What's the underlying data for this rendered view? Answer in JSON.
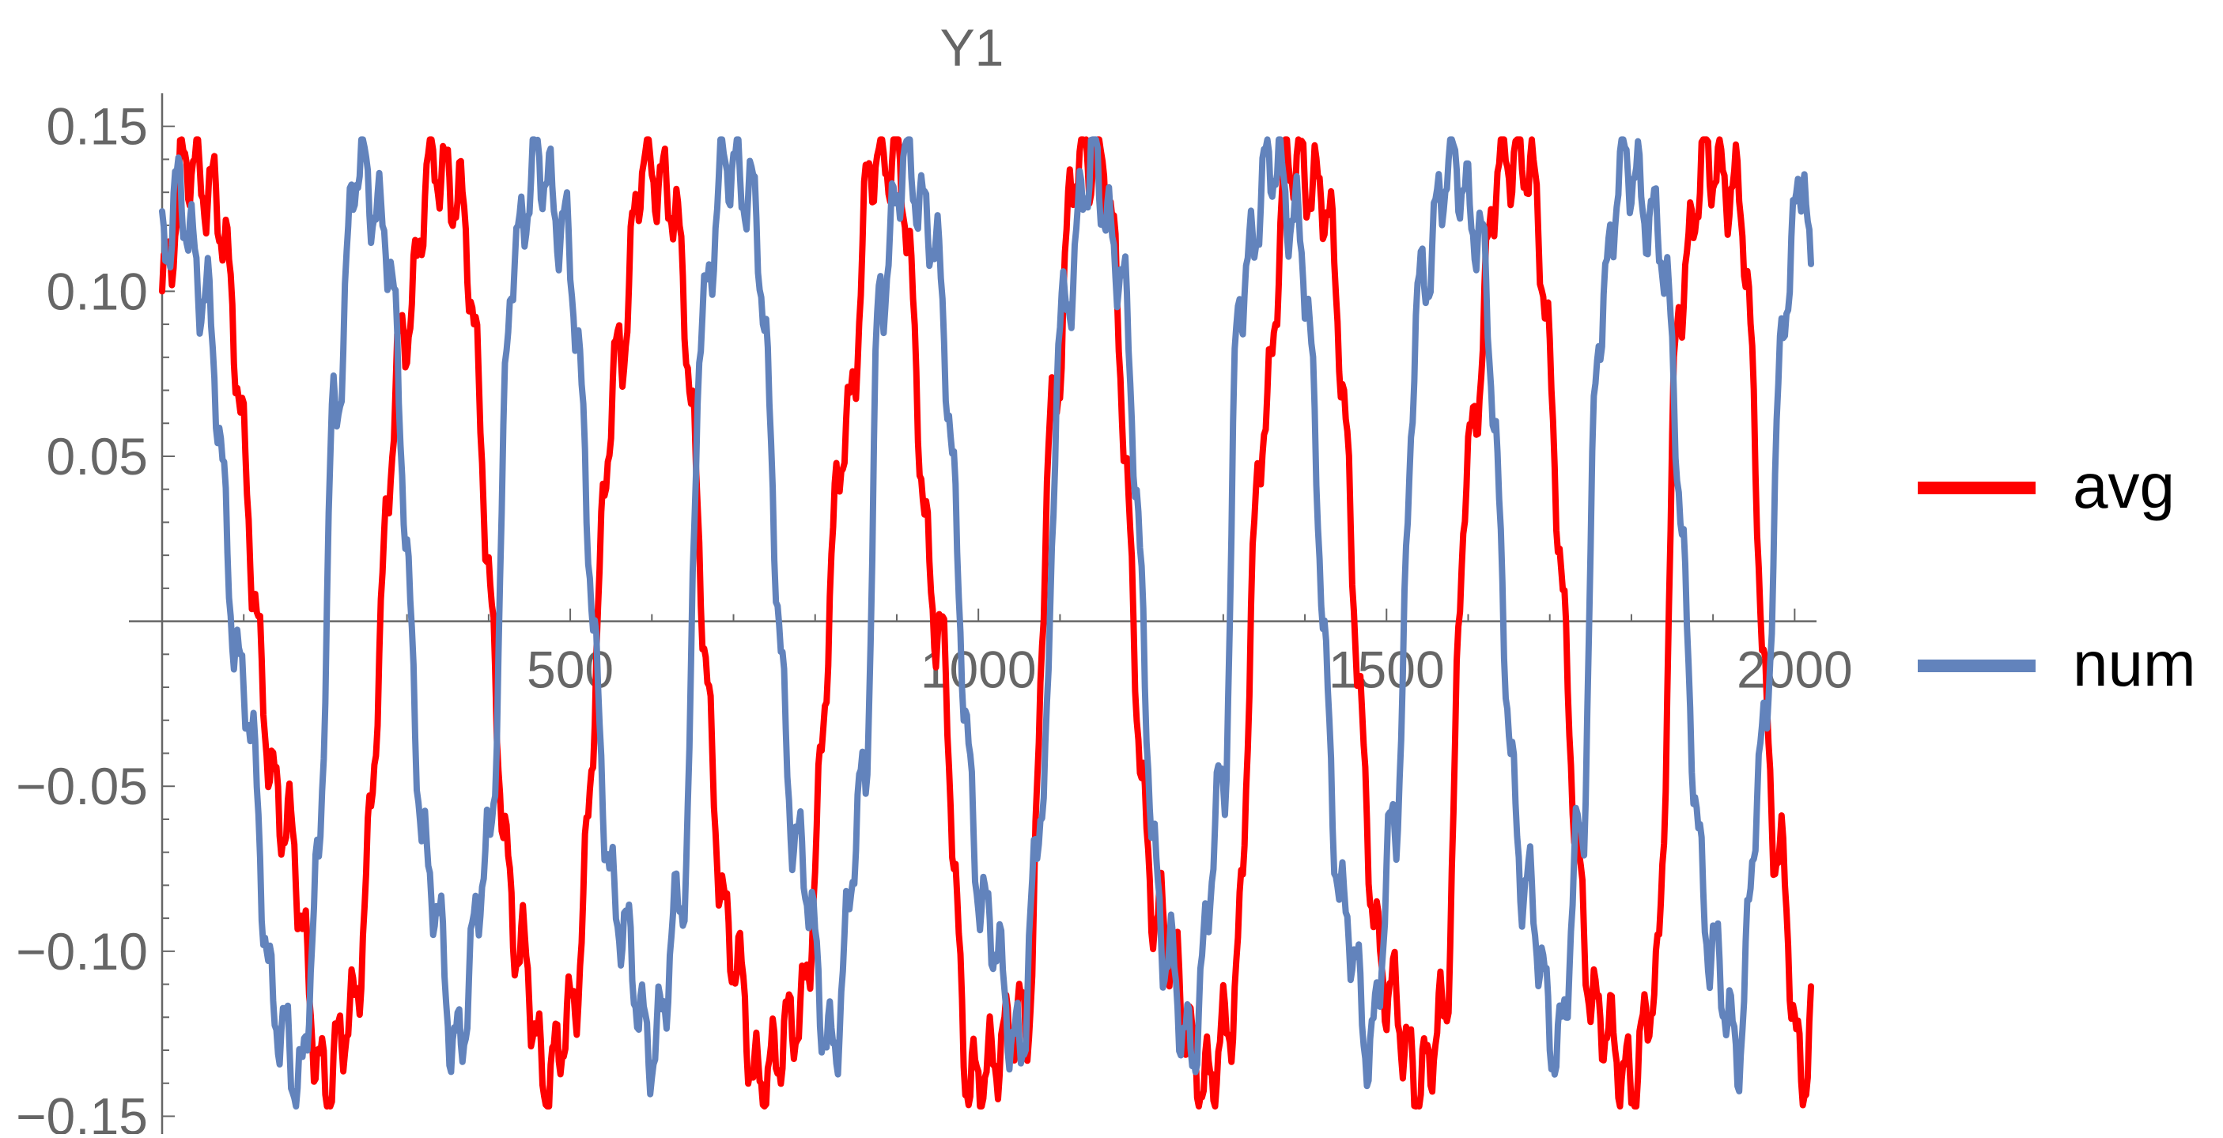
{
  "chart_data": {
    "type": "line",
    "title": "Y1",
    "xlabel": "",
    "ylabel": "",
    "xlim": [
      0,
      2020
    ],
    "ylim": [
      -0.153,
      0.16
    ],
    "x_ticks": [
      500,
      1000,
      1500,
      2000
    ],
    "x_tick_labels": [
      "500",
      "1000",
      "1500",
      "2000"
    ],
    "y_ticks": [
      0.15,
      0.1,
      0.05,
      -0.05,
      -0.1,
      -0.15
    ],
    "y_tick_labels": [
      "0.15",
      "0.10",
      "0.05",
      "−0.05",
      "−0.10",
      "−0.15"
    ],
    "grid": false,
    "legend_position": "right",
    "series": [
      {
        "name": "avg",
        "color": "#ff0000",
        "anchors": [
          [
            0,
            0.1
          ],
          [
            30,
            0.14
          ],
          [
            60,
            0.13
          ],
          [
            150,
            -0.06
          ],
          [
            200,
            -0.14
          ],
          [
            230,
            -0.12
          ],
          [
            300,
            0.09
          ],
          [
            330,
            0.14
          ],
          [
            360,
            0.13
          ],
          [
            440,
            -0.1
          ],
          [
            470,
            -0.14
          ],
          [
            500,
            -0.12
          ],
          [
            560,
            0.08
          ],
          [
            590,
            0.14
          ],
          [
            620,
            0.13
          ],
          [
            700,
            -0.1
          ],
          [
            730,
            -0.14
          ],
          [
            780,
            -0.12
          ],
          [
            840,
            0.06
          ],
          [
            870,
            0.14
          ],
          [
            900,
            0.14
          ],
          [
            950,
            0.0
          ],
          [
            990,
            -0.14
          ],
          [
            1060,
            -0.12
          ],
          [
            1090,
            0.06
          ],
          [
            1120,
            0.14
          ],
          [
            1150,
            0.14
          ],
          [
            1220,
            -0.09
          ],
          [
            1280,
            -0.14
          ],
          [
            1310,
            -0.12
          ],
          [
            1350,
            0.06
          ],
          [
            1380,
            0.14
          ],
          [
            1420,
            0.13
          ],
          [
            1500,
            -0.11
          ],
          [
            1540,
            -0.14
          ],
          [
            1570,
            -0.12
          ],
          [
            1600,
            0.05
          ],
          [
            1640,
            0.14
          ],
          [
            1670,
            0.14
          ],
          [
            1760,
            -0.12
          ],
          [
            1800,
            -0.14
          ],
          [
            1830,
            -0.11
          ],
          [
            1860,
            0.1
          ],
          [
            1890,
            0.14
          ],
          [
            1930,
            0.13
          ],
          [
            1980,
            -0.07
          ],
          [
            2010,
            -0.14
          ],
          [
            2020,
            -0.12
          ]
        ]
      },
      {
        "name": "num",
        "color": "#6283bc",
        "anchors": [
          [
            0,
            0.11
          ],
          [
            20,
            0.13
          ],
          [
            50,
            0.1
          ],
          [
            100,
            -0.02
          ],
          [
            140,
            -0.12
          ],
          [
            170,
            -0.14
          ],
          [
            190,
            -0.08
          ],
          [
            210,
            0.06
          ],
          [
            240,
            0.14
          ],
          [
            270,
            0.12
          ],
          [
            330,
            -0.08
          ],
          [
            360,
            -0.13
          ],
          [
            400,
            -0.07
          ],
          [
            430,
            0.11
          ],
          [
            460,
            0.14
          ],
          [
            490,
            0.12
          ],
          [
            560,
            -0.09
          ],
          [
            600,
            -0.13
          ],
          [
            640,
            -0.08
          ],
          [
            660,
            0.09
          ],
          [
            690,
            0.14
          ],
          [
            720,
            0.13
          ],
          [
            780,
            -0.07
          ],
          [
            820,
            -0.13
          ],
          [
            860,
            -0.05
          ],
          [
            880,
            0.1
          ],
          [
            910,
            0.14
          ],
          [
            940,
            0.12
          ],
          [
            1010,
            -0.09
          ],
          [
            1050,
            -0.13
          ],
          [
            1080,
            -0.05
          ],
          [
            1100,
            0.09
          ],
          [
            1140,
            0.14
          ],
          [
            1170,
            0.11
          ],
          [
            1230,
            -0.1
          ],
          [
            1260,
            -0.13
          ],
          [
            1300,
            -0.05
          ],
          [
            1320,
            0.1
          ],
          [
            1360,
            0.14
          ],
          [
            1390,
            0.12
          ],
          [
            1450,
            -0.09
          ],
          [
            1480,
            -0.13
          ],
          [
            1510,
            -0.06
          ],
          [
            1540,
            0.1
          ],
          [
            1580,
            0.14
          ],
          [
            1610,
            0.12
          ],
          [
            1670,
            -0.08
          ],
          [
            1710,
            -0.13
          ],
          [
            1740,
            -0.06
          ],
          [
            1760,
            0.09
          ],
          [
            1790,
            0.14
          ],
          [
            1830,
            0.12
          ],
          [
            1900,
            -0.1
          ],
          [
            1930,
            -0.13
          ],
          [
            1960,
            -0.04
          ],
          [
            1990,
            0.1
          ],
          [
            2010,
            0.14
          ],
          [
            2020,
            0.1
          ]
        ]
      }
    ]
  }
}
